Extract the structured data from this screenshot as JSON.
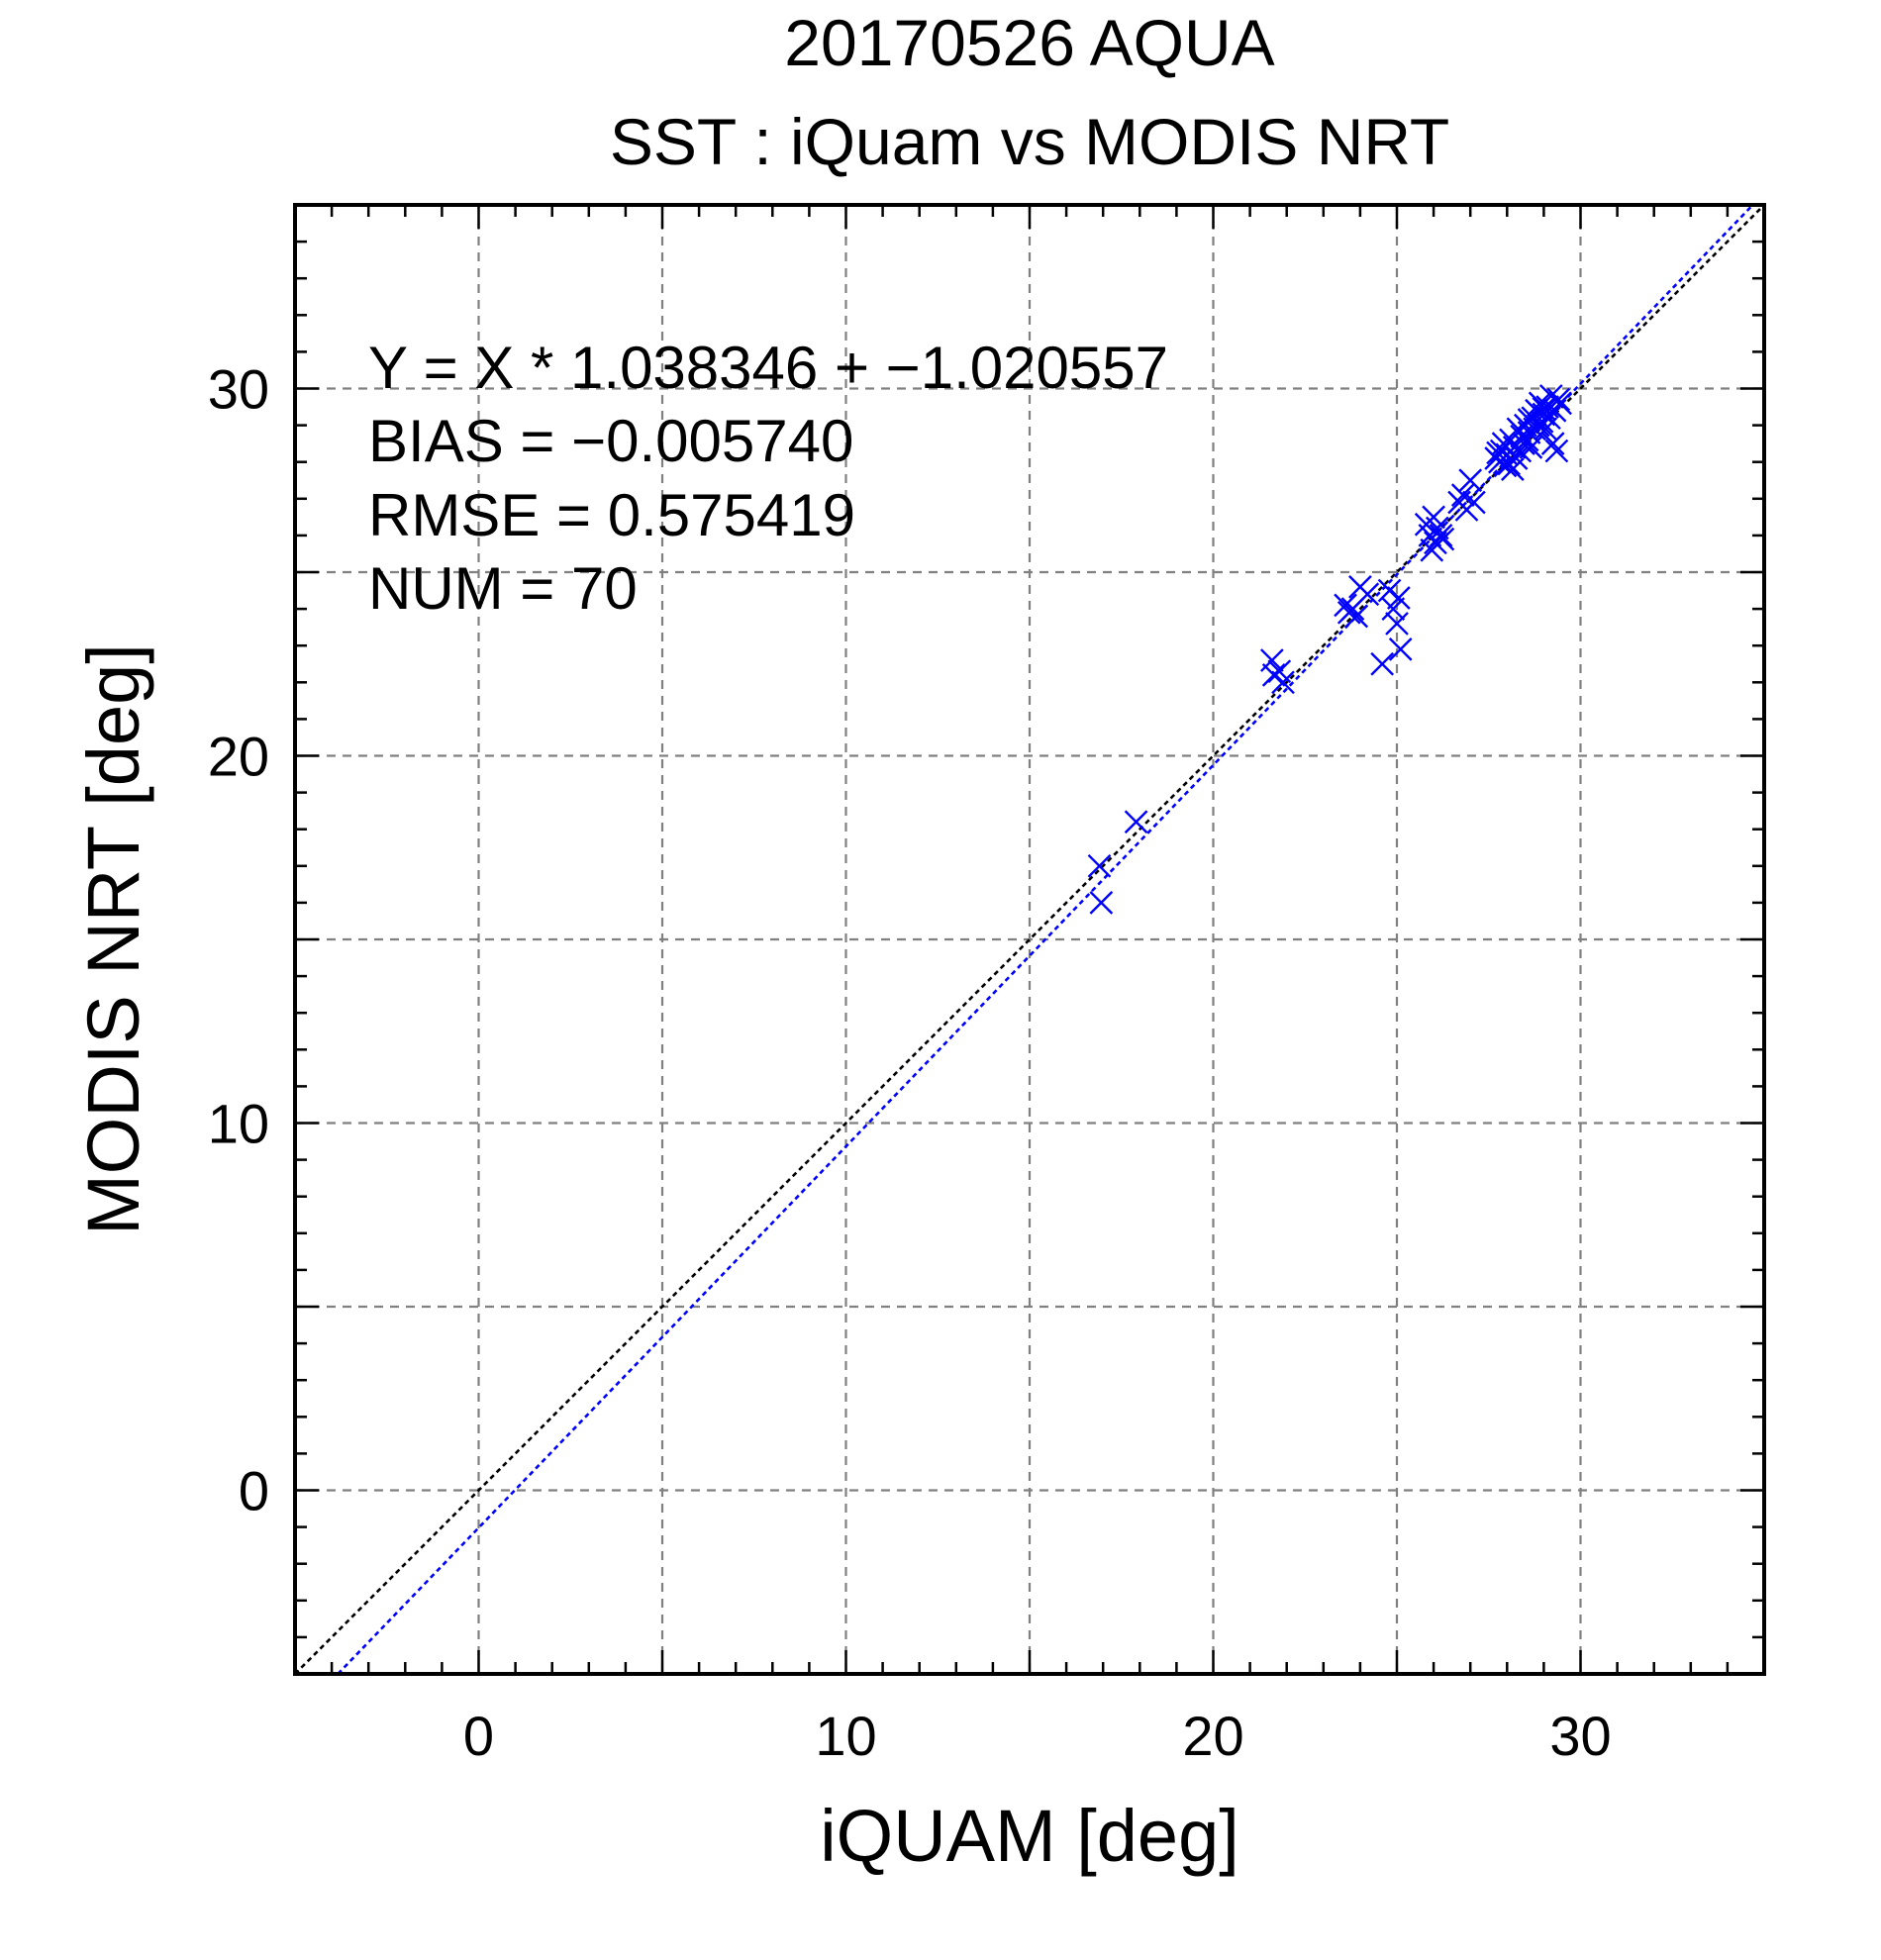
{
  "chart_data": {
    "type": "scatter",
    "title": "20170526 AQUA",
    "subtitle": "SST : iQuam vs MODIS NRT",
    "xlabel": "iQUAM [deg]",
    "ylabel": "MODIS NRT [deg]",
    "xlim": [
      -5,
      35
    ],
    "ylim": [
      -5,
      35
    ],
    "xticks": [
      0,
      10,
      20,
      30
    ],
    "yticks": [
      0,
      10,
      20,
      30
    ],
    "grid": true,
    "stats": [
      "Y = X * 1.038346 + −1.020557",
      "BIAS = −0.005740",
      "RMSE = 0.575419",
      "NUM = 70"
    ],
    "colors": {
      "points": "#0000ff",
      "fit_line": "#0000ff",
      "identity_line": "#000000"
    },
    "identity_line": {
      "slope": 1,
      "intercept": 0
    },
    "fit_line": {
      "slope": 1.038346,
      "intercept": -1.020557
    },
    "points": [
      [
        16.9,
        17.0
      ],
      [
        16.95,
        16.0
      ],
      [
        17.9,
        18.2
      ],
      [
        21.6,
        22.6
      ],
      [
        21.65,
        22.2
      ],
      [
        21.8,
        22.3
      ],
      [
        21.9,
        22.0
      ],
      [
        23.6,
        24.1
      ],
      [
        23.7,
        23.9
      ],
      [
        23.8,
        24.0
      ],
      [
        23.9,
        23.8
      ],
      [
        24.0,
        24.6
      ],
      [
        24.2,
        24.4
      ],
      [
        24.6,
        22.5
      ],
      [
        24.8,
        24.5
      ],
      [
        24.9,
        24.0
      ],
      [
        25.0,
        23.6
      ],
      [
        25.05,
        24.3
      ],
      [
        25.1,
        22.9
      ],
      [
        25.8,
        26.3
      ],
      [
        25.9,
        26.0
      ],
      [
        25.95,
        25.6
      ],
      [
        26.0,
        26.5
      ],
      [
        26.05,
        25.8
      ],
      [
        26.1,
        26.2
      ],
      [
        26.2,
        26.0
      ],
      [
        26.25,
        25.9
      ],
      [
        26.7,
        26.9
      ],
      [
        26.8,
        27.1
      ],
      [
        26.9,
        26.7
      ],
      [
        27.0,
        27.5
      ],
      [
        27.1,
        26.9
      ],
      [
        27.7,
        28.1
      ],
      [
        27.8,
        28.0
      ],
      [
        27.85,
        28.3
      ],
      [
        27.9,
        28.5
      ],
      [
        27.95,
        27.9
      ],
      [
        28.0,
        28.2
      ],
      [
        28.1,
        28.6
      ],
      [
        28.15,
        27.8
      ],
      [
        28.2,
        28.4
      ],
      [
        28.25,
        28.1
      ],
      [
        28.3,
        28.9
      ],
      [
        28.35,
        28.3
      ],
      [
        28.4,
        28.7
      ],
      [
        28.45,
        28.5
      ],
      [
        28.5,
        29.0
      ],
      [
        28.55,
        28.6
      ],
      [
        28.6,
        28.8
      ],
      [
        28.65,
        28.4
      ],
      [
        28.7,
        29.2
      ],
      [
        28.75,
        28.9
      ],
      [
        28.8,
        29.4
      ],
      [
        28.85,
        29.0
      ],
      [
        28.9,
        29.6
      ],
      [
        28.95,
        29.1
      ],
      [
        29.0,
        29.3
      ],
      [
        29.05,
        28.9
      ],
      [
        29.1,
        29.5
      ],
      [
        29.15,
        29.2
      ],
      [
        29.2,
        29.8
      ],
      [
        29.25,
        28.5
      ],
      [
        29.3,
        29.4
      ],
      [
        29.35,
        28.3
      ],
      [
        29.4,
        29.7
      ],
      [
        29.45,
        29.6
      ],
      [
        28.05,
        27.95
      ],
      [
        27.75,
        28.25
      ],
      [
        28.6,
        29.15
      ],
      [
        29.0,
        29.45
      ]
    ]
  }
}
